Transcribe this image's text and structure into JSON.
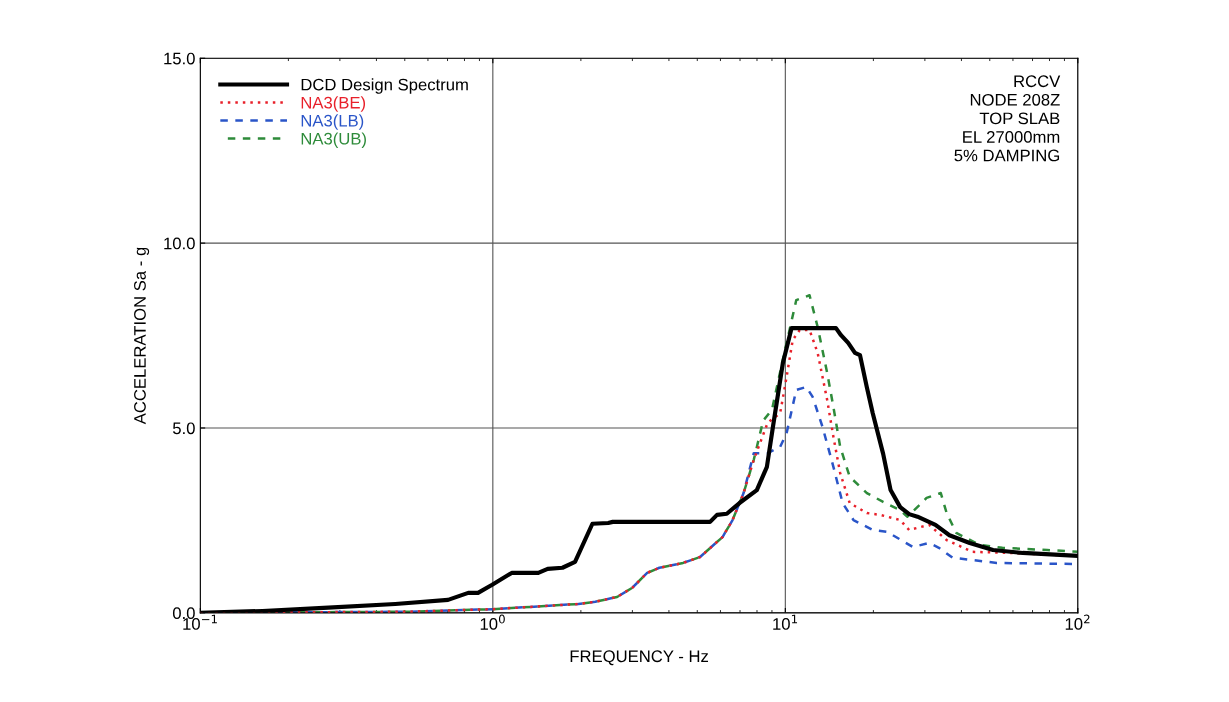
{
  "chart_data": {
    "type": "line",
    "xlabel": "FREQUENCY - Hz",
    "ylabel": "ACCELERATION Sa - g",
    "log": "x",
    "xlim": [
      0.1,
      100
    ],
    "xticks": [
      {
        "value": 0.1,
        "label": "10$^{−1}$"
      },
      {
        "value": 1,
        "label": "10$^{0}$"
      },
      {
        "value": 10,
        "label": "10$^{1}$"
      },
      {
        "value": 100,
        "label": "10$^{2}$"
      }
    ],
    "ylim": [
      0,
      15
    ],
    "yticks": [
      {
        "value": 0,
        "label": "0.0"
      },
      {
        "value": 5,
        "label": "5.0"
      },
      {
        "value": 10,
        "label": "10.0"
      },
      {
        "value": 15,
        "label": "15.0"
      }
    ],
    "grid": true,
    "legend": "top left",
    "annotations": [
      "RCCV\nNODE 208Z\nTOP SLAB\nEL 27000mm\n5% DAMPING"
    ],
    "series": [
      {
        "name": "DCD Design Spectrum",
        "color": "#000000",
        "line_style": "solid",
        "x": [
          0.1,
          0.163,
          0.274,
          0.464,
          0.703,
          0.824,
          0.89,
          0.995,
          1.16,
          1.43,
          1.54,
          1.73,
          1.91,
          2.19,
          2.48,
          2.57,
          5.53,
          5.84,
          6.31,
          6.97,
          7.99,
          8.65,
          9.07,
          9.81,
          10.5,
          14.9,
          15.5,
          16.4,
          17.3,
          18.0,
          19.0,
          19.9,
          21.6,
          22.9,
          24.7,
          26.5,
          28.3,
          32.6,
          36.4,
          42.7,
          51.3,
          64.8,
          100
        ],
        "values": [
          0.0,
          0.05,
          0.14,
          0.24,
          0.35,
          0.54,
          0.54,
          0.76,
          1.08,
          1.08,
          1.19,
          1.22,
          1.38,
          2.41,
          2.43,
          2.46,
          2.46,
          2.65,
          2.68,
          2.97,
          3.32,
          3.95,
          5.03,
          6.76,
          7.7,
          7.7,
          7.51,
          7.3,
          7.03,
          6.97,
          6.1,
          5.4,
          4.3,
          3.32,
          2.86,
          2.67,
          2.6,
          2.38,
          2.1,
          1.89,
          1.7,
          1.62,
          1.54
        ]
      },
      {
        "name": "NA3(BE)",
        "color": "#e8202a",
        "line_style": "dotted",
        "x": [
          0.1,
          0.51,
          1.0,
          1.96,
          2.24,
          2.66,
          3.0,
          3.37,
          3.71,
          4.47,
          5.11,
          6.1,
          6.6,
          7.2,
          7.8,
          8.7,
          9.6,
          10.1,
          10.6,
          11.2,
          12.1,
          12.9,
          13.9,
          14.6,
          15.4,
          16.6,
          19.0,
          21.1,
          24.7,
          26.5,
          31.0,
          35.6,
          43.6,
          59.5,
          100
        ],
        "values": [
          0.0,
          0.03,
          0.1,
          0.24,
          0.3,
          0.43,
          0.68,
          1.08,
          1.22,
          1.35,
          1.51,
          2.05,
          2.51,
          3.24,
          4.14,
          5.14,
          5.4,
          6.38,
          7.38,
          7.65,
          7.65,
          7.03,
          5.76,
          4.76,
          3.78,
          2.97,
          2.7,
          2.65,
          2.51,
          2.24,
          2.38,
          1.97,
          1.65,
          1.62,
          1.54
        ]
      },
      {
        "name": "NA3(LB)",
        "color": "#2a55c8",
        "line_style": "dashed",
        "x": [
          0.1,
          0.51,
          1.0,
          1.96,
          2.24,
          2.66,
          3.0,
          3.37,
          3.71,
          4.47,
          5.11,
          6.1,
          6.6,
          7.2,
          7.8,
          8.7,
          9.6,
          10.1,
          10.9,
          11.8,
          12.4,
          13.4,
          14.6,
          15.7,
          17.1,
          19.9,
          22.3,
          27.3,
          31.0,
          33.5,
          37.3,
          52.8,
          100
        ],
        "values": [
          0.0,
          0.03,
          0.1,
          0.24,
          0.3,
          0.43,
          0.68,
          1.08,
          1.22,
          1.35,
          1.51,
          2.05,
          2.51,
          3.24,
          4.32,
          4.32,
          4.49,
          4.86,
          6.03,
          6.11,
          5.84,
          5.03,
          3.95,
          2.97,
          2.51,
          2.24,
          2.19,
          1.78,
          1.89,
          1.76,
          1.49,
          1.35,
          1.32
        ]
      },
      {
        "name": "NA3(UB)",
        "color": "#2e8b3a",
        "line_style": "dashed",
        "x": [
          0.1,
          0.51,
          1.0,
          1.96,
          2.24,
          2.66,
          3.0,
          3.37,
          3.71,
          4.47,
          5.11,
          6.1,
          6.6,
          7.2,
          7.8,
          8.4,
          9.0,
          9.8,
          10.9,
          12.1,
          12.9,
          13.9,
          14.6,
          15.4,
          16.6,
          19.0,
          21.6,
          24.7,
          26.1,
          28.8,
          30.4,
          34.0,
          35.6,
          38.4,
          46.1,
          55.2,
          78.6,
          100
        ],
        "values": [
          0.0,
          0.03,
          0.1,
          0.24,
          0.3,
          0.43,
          0.68,
          1.08,
          1.22,
          1.35,
          1.51,
          2.05,
          2.51,
          3.24,
          4.14,
          5.2,
          5.49,
          6.84,
          8.46,
          8.59,
          7.73,
          6.49,
          5.57,
          4.49,
          3.68,
          3.24,
          3.0,
          2.78,
          2.6,
          2.92,
          3.11,
          3.24,
          2.7,
          2.16,
          1.84,
          1.76,
          1.7,
          1.65
        ]
      }
    ]
  }
}
